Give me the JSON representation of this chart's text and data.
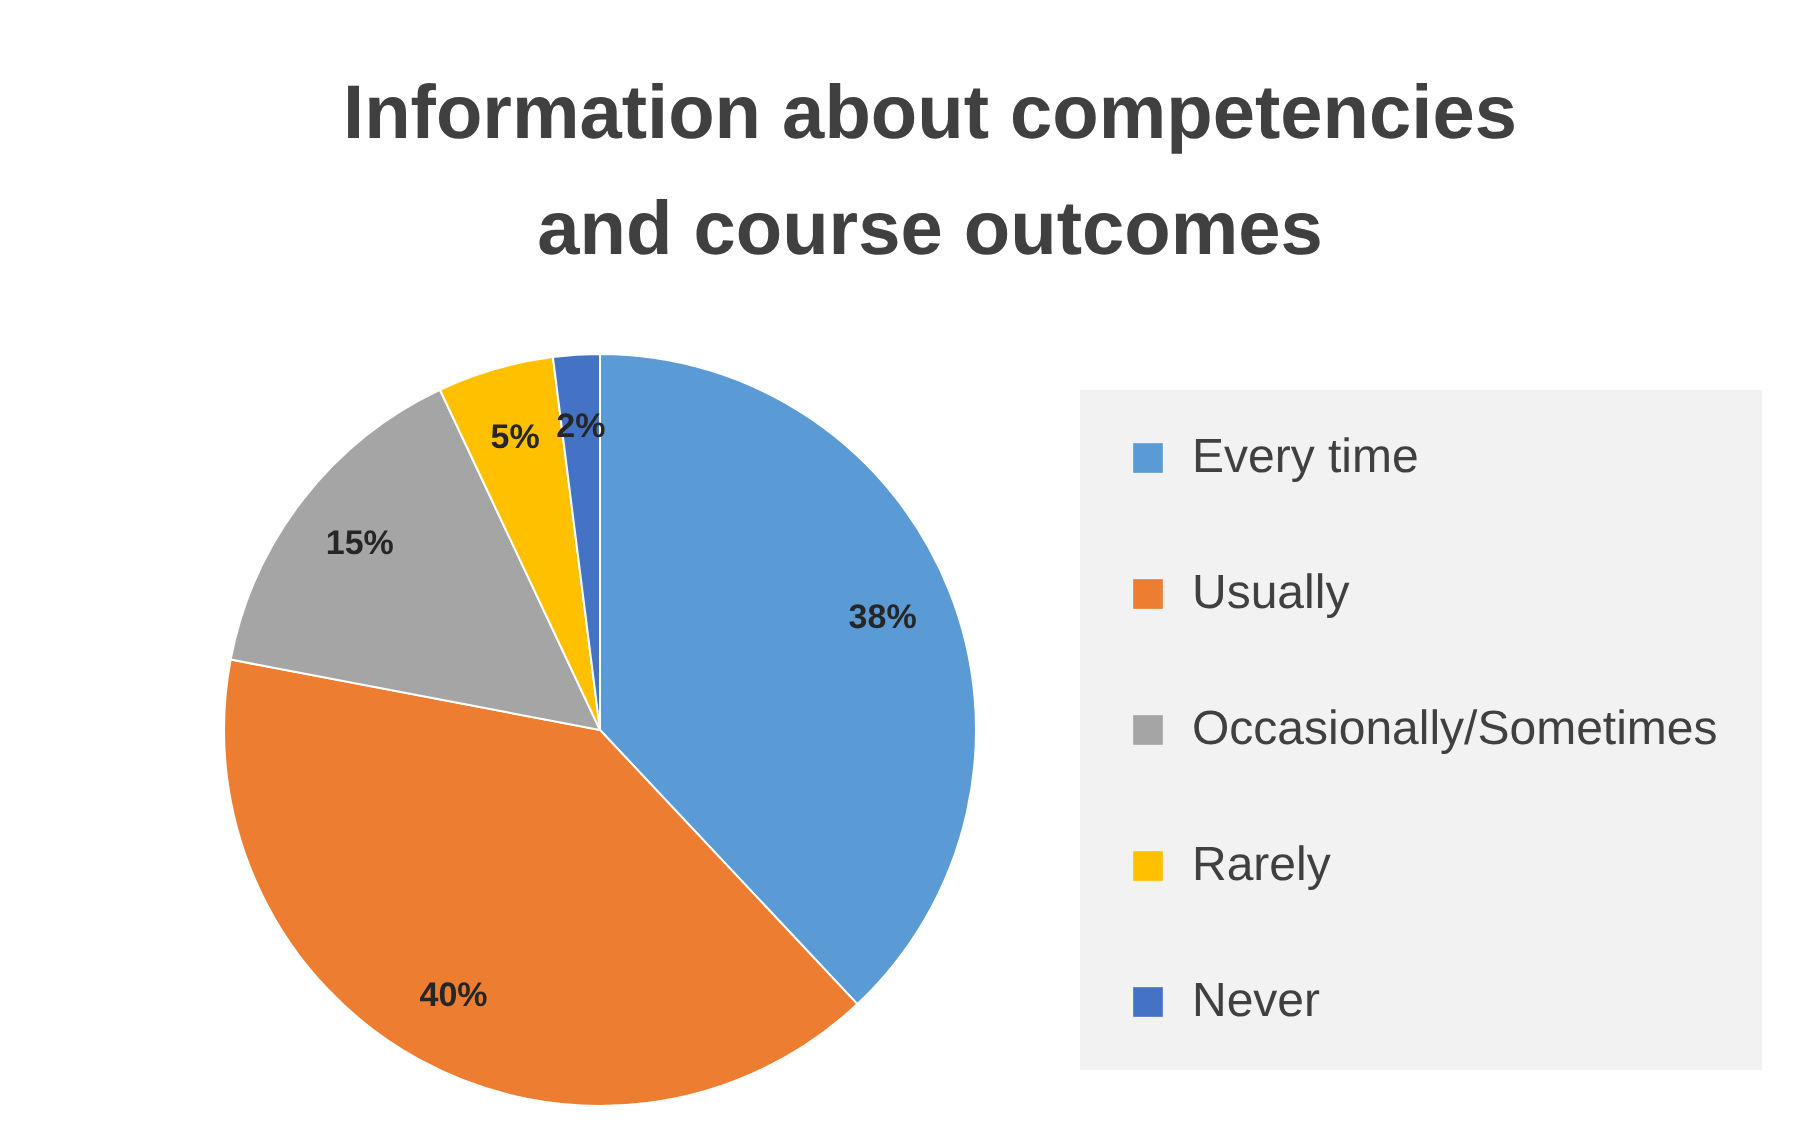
{
  "chart_data": {
    "type": "pie",
    "title": "Information about competencies\nand  course outcomes",
    "categories": [
      "Every time",
      "Usually",
      "Occasionally/Sometimes",
      "Rarely",
      "Never"
    ],
    "values": [
      38,
      40,
      15,
      5,
      2
    ],
    "colors": [
      "#5b9bd5",
      "#ed7d31",
      "#a5a5a5",
      "#ffc000",
      "#4472c4"
    ],
    "value_labels": [
      "38%",
      "40%",
      "15%",
      "5%",
      "2%"
    ],
    "legend": "right"
  }
}
